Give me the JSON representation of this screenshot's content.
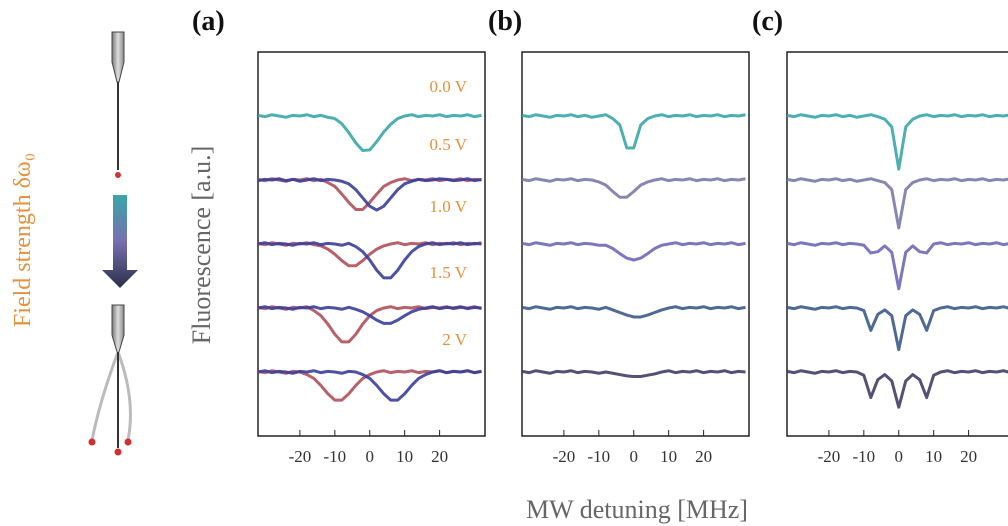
{
  "figure": {
    "side_label": "Field strength δω₀",
    "ylabel": "Fluorescence [a.u.]",
    "xlabel": "MW detuning [MHz]"
  },
  "chart_data": [
    {
      "type": "line",
      "title": "(a)",
      "annotations": [
        "0.0 V",
        "0.5 V",
        "1.0 V",
        "1.5 V",
        "2 V"
      ],
      "xlim": [
        -32,
        33
      ],
      "ylim": [
        0,
        6
      ],
      "xticks": [
        -20,
        -10,
        0,
        10,
        20
      ],
      "x": [
        -32,
        -30,
        -28,
        -26,
        -24,
        -22,
        -20,
        -18,
        -16,
        -14,
        -12,
        -10,
        -8,
        -6,
        -4,
        -2,
        0,
        2,
        4,
        6,
        8,
        10,
        12,
        14,
        16,
        18,
        20,
        22,
        24,
        26,
        28,
        30,
        32
      ],
      "series": [
        {
          "color": "#3aa6a8",
          "values": [
            5.01,
            4.99,
            5.02,
            5.0,
            4.98,
            5.01,
            5.0,
            5.02,
            4.99,
            5.01,
            4.98,
            4.96,
            4.88,
            4.74,
            4.58,
            4.46,
            4.47,
            4.6,
            4.75,
            4.87,
            4.96,
            5.0,
            5.02,
            4.99,
            5.01,
            5.0,
            5.02,
            4.99,
            5.01,
            5.0,
            5.02,
            4.99,
            5.01
          ]
        },
        {
          "color": "#b0505a",
          "values": [
            4.01,
            3.99,
            4.02,
            4.0,
            3.98,
            4.01,
            4.0,
            4.02,
            3.99,
            4.01,
            3.96,
            3.9,
            3.78,
            3.65,
            3.54,
            3.54,
            3.65,
            3.78,
            3.9,
            3.96,
            4.0,
            4.02,
            3.99,
            4.01,
            4.0,
            4.02,
            3.99,
            4.01,
            4.0,
            4.02,
            3.99,
            4.01,
            4.0
          ]
        },
        {
          "color": "#3a3f9c",
          "values": [
            3.99,
            4.01,
            4.0,
            4.02,
            3.99,
            4.01,
            3.98,
            4.0,
            4.02,
            3.99,
            4.01,
            4.0,
            3.98,
            3.94,
            3.85,
            3.72,
            3.59,
            3.53,
            3.59,
            3.72,
            3.85,
            3.94,
            3.98,
            4.01,
            3.99,
            4.0,
            4.02,
            4.01,
            3.99,
            4.0,
            4.02,
            3.99,
            4.01
          ]
        },
        {
          "color": "#b0505a",
          "values": [
            3.01,
            2.99,
            3.02,
            3.0,
            2.98,
            3.01,
            3.0,
            3.02,
            2.99,
            2.97,
            2.92,
            2.84,
            2.74,
            2.66,
            2.66,
            2.74,
            2.84,
            2.92,
            2.97,
            3.0,
            3.02,
            2.99,
            3.01,
            3.0,
            3.02,
            2.99,
            3.01,
            3.0,
            3.02,
            2.99,
            3.01,
            3.0,
            3.02
          ]
        },
        {
          "color": "#3a3f9c",
          "values": [
            3.0,
            3.02,
            2.99,
            3.01,
            3.0,
            2.98,
            3.01,
            3.0,
            3.02,
            2.99,
            3.01,
            3.0,
            2.98,
            3.01,
            2.96,
            2.88,
            2.75,
            2.59,
            2.47,
            2.47,
            2.59,
            2.75,
            2.88,
            2.96,
            3.0,
            3.02,
            2.99,
            3.01,
            3.0,
            3.02,
            2.99,
            3.01,
            3.0
          ]
        },
        {
          "color": "#b0505a",
          "values": [
            2.01,
            1.99,
            2.02,
            2.0,
            1.98,
            2.01,
            2.0,
            2.02,
            1.96,
            1.88,
            1.75,
            1.59,
            1.47,
            1.47,
            1.59,
            1.75,
            1.88,
            1.96,
            2.0,
            2.02,
            1.99,
            2.01,
            2.0,
            2.02,
            1.99,
            2.01,
            2.0,
            2.02,
            1.99,
            2.01,
            2.0,
            2.02,
            1.99
          ]
        },
        {
          "color": "#3a3f9c",
          "values": [
            2.0,
            2.02,
            1.99,
            2.01,
            2.0,
            1.98,
            2.01,
            2.0,
            2.02,
            1.99,
            2.01,
            2.0,
            1.98,
            2.01,
            1.98,
            1.94,
            1.88,
            1.81,
            1.76,
            1.76,
            1.81,
            1.88,
            1.94,
            1.98,
            2.0,
            2.02,
            1.99,
            2.01,
            2.0,
            2.02,
            1.99,
            2.01,
            2.0
          ]
        },
        {
          "color": "#b0505a",
          "values": [
            1.01,
            0.99,
            1.02,
            1.0,
            0.98,
            1.01,
            1.0,
            0.96,
            0.9,
            0.79,
            0.66,
            0.56,
            0.56,
            0.66,
            0.79,
            0.9,
            0.96,
            1.0,
            1.02,
            0.99,
            1.01,
            1.0,
            1.02,
            0.99,
            1.01,
            1.0,
            1.02,
            0.99,
            1.01,
            1.0,
            1.02,
            0.99,
            1.01
          ]
        },
        {
          "color": "#3a3f9c",
          "values": [
            1.0,
            1.02,
            0.99,
            1.01,
            1.0,
            0.98,
            1.01,
            1.0,
            1.02,
            0.99,
            1.01,
            1.0,
            0.98,
            1.01,
            1.0,
            0.96,
            0.9,
            0.79,
            0.66,
            0.56,
            0.56,
            0.66,
            0.79,
            0.9,
            0.96,
            1.0,
            1.02,
            0.99,
            1.01,
            1.0,
            1.02,
            0.99,
            1.01
          ]
        }
      ]
    },
    {
      "type": "line",
      "title": "(b)",
      "xlim": [
        -32,
        33
      ],
      "ylim": [
        0,
        6
      ],
      "xticks": [
        -20,
        -10,
        0,
        10,
        20
      ],
      "x": [
        -32,
        -30,
        -28,
        -26,
        -24,
        -22,
        -20,
        -18,
        -16,
        -14,
        -12,
        -10,
        -8,
        -6,
        -4,
        -2,
        0,
        2,
        4,
        6,
        8,
        10,
        12,
        14,
        16,
        18,
        20,
        22,
        24,
        26,
        28,
        30,
        32
      ],
      "series": [
        {
          "color": "#3aa6a8",
          "values": [
            5.01,
            4.99,
            5.02,
            5.0,
            4.98,
            5.01,
            5.0,
            5.02,
            4.99,
            5.01,
            4.98,
            5.0,
            5.02,
            4.96,
            4.86,
            4.5,
            4.5,
            4.86,
            4.96,
            5.0,
            5.02,
            4.99,
            5.01,
            5.0,
            5.02,
            4.99,
            5.01,
            5.0,
            5.02,
            4.99,
            5.01,
            5.0,
            5.02
          ]
        },
        {
          "color": "#7b7aa8",
          "values": [
            4.01,
            3.99,
            4.02,
            4.0,
            3.98,
            4.01,
            4.0,
            4.02,
            3.99,
            4.01,
            4.0,
            3.97,
            3.92,
            3.82,
            3.73,
            3.73,
            3.82,
            3.92,
            3.97,
            4.0,
            4.02,
            3.99,
            4.01,
            4.0,
            4.02,
            3.99,
            4.01,
            4.0,
            4.02,
            3.99,
            4.01,
            4.0,
            4.02
          ]
        },
        {
          "color": "#6e68b8",
          "values": [
            3.01,
            2.99,
            3.02,
            3.0,
            2.98,
            3.01,
            3.0,
            3.02,
            2.99,
            3.01,
            3.0,
            2.98,
            2.98,
            2.93,
            2.85,
            2.78,
            2.75,
            2.78,
            2.85,
            2.93,
            2.98,
            3.0,
            3.02,
            2.99,
            3.01,
            3.0,
            3.02,
            2.99,
            3.01,
            3.0,
            3.02,
            2.99,
            3.01
          ]
        },
        {
          "color": "#3c5a8a",
          "values": [
            2.01,
            1.99,
            2.02,
            2.0,
            1.98,
            2.01,
            2.0,
            2.02,
            1.99,
            2.01,
            2.0,
            1.98,
            2.01,
            1.97,
            1.93,
            1.89,
            1.86,
            1.86,
            1.89,
            1.93,
            1.97,
            2.0,
            2.02,
            1.99,
            2.01,
            2.0,
            2.02,
            1.99,
            2.01,
            2.0,
            2.02,
            1.99,
            2.01
          ]
        },
        {
          "color": "#413e66",
          "values": [
            1.01,
            0.99,
            1.02,
            1.0,
            0.98,
            1.01,
            1.0,
            1.02,
            0.99,
            1.01,
            1.0,
            0.98,
            1.0,
            0.98,
            0.96,
            0.94,
            0.93,
            0.93,
            0.95,
            0.97,
            1.0,
            1.02,
            0.99,
            1.01,
            1.0,
            1.02,
            0.99,
            1.01,
            1.0,
            1.02,
            0.99,
            1.01,
            1.0
          ]
        }
      ]
    },
    {
      "type": "line",
      "title": "(c)",
      "xlim": [
        -32,
        33
      ],
      "ylim": [
        0,
        6
      ],
      "xticks": [
        -20,
        -10,
        0,
        10,
        20
      ],
      "x": [
        -32,
        -30,
        -28,
        -26,
        -24,
        -22,
        -20,
        -18,
        -16,
        -14,
        -12,
        -10,
        -8,
        -6,
        -4,
        -2,
        0,
        2,
        4,
        6,
        8,
        10,
        12,
        14,
        16,
        18,
        20,
        22,
        24,
        26,
        28,
        30,
        32
      ],
      "series": [
        {
          "color": "#3aa6a8",
          "values": [
            5.01,
            4.99,
            5.02,
            5.0,
            4.98,
            5.01,
            5.0,
            5.02,
            4.99,
            5.01,
            4.98,
            5.0,
            5.02,
            4.99,
            4.95,
            4.83,
            4.17,
            4.83,
            4.95,
            5.0,
            5.02,
            4.99,
            5.01,
            5.0,
            5.02,
            4.99,
            5.01,
            5.0,
            5.02,
            4.99,
            5.01,
            5.0,
            5.02
          ]
        },
        {
          "color": "#7b7aa8",
          "values": [
            4.01,
            3.99,
            4.02,
            4.0,
            3.98,
            4.01,
            4.0,
            4.02,
            3.99,
            4.01,
            3.98,
            4.0,
            4.02,
            3.99,
            3.96,
            3.85,
            3.25,
            3.85,
            3.96,
            4.0,
            4.02,
            3.99,
            4.01,
            4.0,
            4.02,
            3.99,
            4.01,
            4.0,
            4.02,
            3.99,
            4.01,
            4.0,
            4.02
          ]
        },
        {
          "color": "#6e68b8",
          "values": [
            3.01,
            2.99,
            3.02,
            3.0,
            2.98,
            3.01,
            3.0,
            3.02,
            2.99,
            3.01,
            3.0,
            2.98,
            2.86,
            2.88,
            2.97,
            2.87,
            2.3,
            2.87,
            2.97,
            2.88,
            2.86,
            3.0,
            3.02,
            2.99,
            3.01,
            3.0,
            3.02,
            2.99,
            3.01,
            3.0,
            3.02,
            2.99,
            3.01
          ]
        },
        {
          "color": "#3c5a8a",
          "values": [
            2.01,
            1.99,
            2.02,
            2.0,
            1.98,
            2.01,
            2.0,
            2.02,
            1.99,
            2.01,
            2.0,
            1.96,
            1.65,
            1.9,
            1.97,
            1.88,
            1.35,
            1.88,
            1.97,
            1.9,
            1.65,
            1.96,
            2.0,
            2.02,
            1.99,
            2.01,
            2.0,
            2.02,
            1.99,
            2.01,
            2.0,
            2.02,
            1.99
          ]
        },
        {
          "color": "#413e66",
          "values": [
            1.01,
            0.99,
            1.02,
            1.0,
            0.98,
            1.01,
            1.0,
            1.02,
            0.99,
            1.01,
            1.0,
            0.95,
            0.6,
            0.88,
            0.96,
            0.86,
            0.45,
            0.86,
            0.96,
            0.88,
            0.6,
            0.95,
            1.0,
            1.02,
            0.99,
            1.01,
            1.0,
            1.02,
            0.99,
            1.01,
            1.0,
            1.02,
            0.99
          ]
        }
      ]
    }
  ]
}
